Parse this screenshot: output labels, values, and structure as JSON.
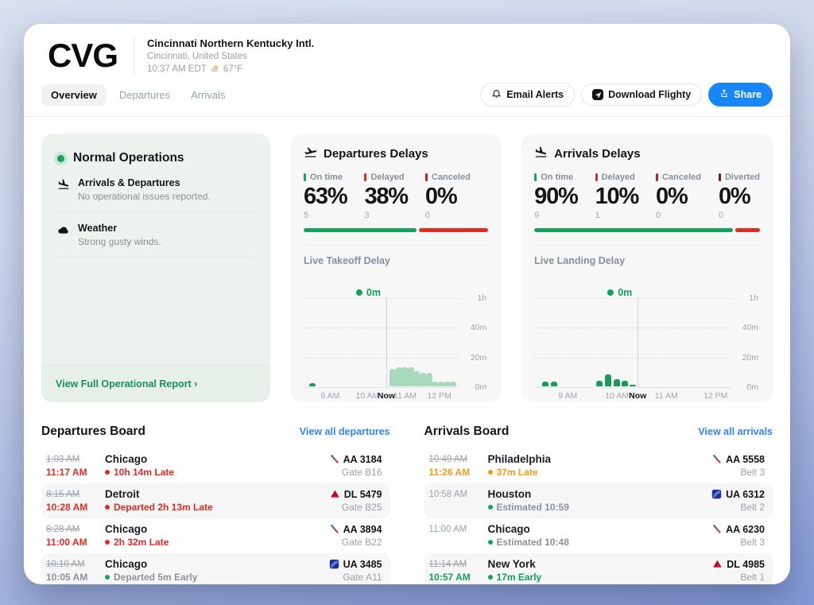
{
  "theme": {
    "green": "#17a35c",
    "light_bar_green": "#a9d9bd",
    "red": "#e02d23",
    "canceled_red": "#b3271e",
    "diverted_maroon": "#6e1a14",
    "orange": "#f59b1f",
    "link_blue": "#2e86f7",
    "share_blue": "#1886f6",
    "mint_bg": "#ecf3ee",
    "card_gray": "#f7f7f8"
  },
  "header": {
    "code": "CVG",
    "name": "Cincinnati Northern Kentucky Intl.",
    "location": "Cincinnati, United States",
    "time": "10:37 AM EDT",
    "temp": "67°F"
  },
  "tabs": [
    {
      "label": "Overview",
      "active": true
    },
    {
      "label": "Departures",
      "active": false
    },
    {
      "label": "Arrivals",
      "active": false
    }
  ],
  "actions": {
    "email": "Email Alerts",
    "download": "Download Flighty",
    "share": "Share"
  },
  "status_card": {
    "title": "Normal Operations",
    "sections": [
      {
        "icon": "plane-landing-icon",
        "title": "Arrivals & Departures",
        "desc": "No operational issues reported."
      },
      {
        "icon": "cloud-icon",
        "title": "Weather",
        "desc": "Strong gusty winds."
      }
    ],
    "footer_link": "View Full Operational Report",
    "chevron": "›"
  },
  "departures_delays": {
    "title": "Departures Delays",
    "stats": [
      {
        "label": "On time",
        "value": "63%",
        "count": "5",
        "color": "#17a35c"
      },
      {
        "label": "Delayed",
        "value": "38%",
        "count": "3",
        "color": "#e02d23"
      },
      {
        "label": "Canceled",
        "value": "0%",
        "count": "0",
        "color": "#b3271e"
      }
    ],
    "segments": [
      {
        "pct": 62,
        "color": "#17a35c"
      },
      {
        "pct": 38,
        "color": "#e02d23"
      }
    ],
    "chart_label": "Live Takeoff Delay"
  },
  "arrivals_delays": {
    "title": "Arrivals Delays",
    "stats": [
      {
        "label": "On time",
        "value": "90%",
        "count": "9",
        "color": "#17a35c"
      },
      {
        "label": "Delayed",
        "value": "10%",
        "count": "1",
        "color": "#e02d23"
      },
      {
        "label": "Canceled",
        "value": "0%",
        "count": "0",
        "color": "#b3271e"
      },
      {
        "label": "Diverted",
        "value": "0%",
        "count": "0",
        "color": "#6e1a14"
      }
    ],
    "segments": [
      {
        "pct": 89,
        "color": "#17a35c"
      },
      {
        "pct": 11,
        "color": "#e02d23"
      }
    ],
    "chart_label": "Live Landing Delay"
  },
  "chart_data": [
    {
      "type": "bar",
      "title": "Live Takeoff Delay",
      "y_unit": "minutes",
      "ylim": [
        0,
        60
      ],
      "ylabels": [
        "1h",
        "40m",
        "20m",
        "0m"
      ],
      "xlabels": [
        {
          "label": "9 AM",
          "pos": 17
        },
        {
          "label": "10 AM",
          "pos": 41
        },
        {
          "label": "Now",
          "pos": 53,
          "bold": true
        },
        {
          "label": "11 AM",
          "pos": 65
        },
        {
          "label": "12 PM",
          "pos": 87
        }
      ],
      "now_pos": 53,
      "now_badge": "0m",
      "bars": [
        {
          "pos": 3.5,
          "minutes": 2,
          "shade": "dark"
        },
        {
          "pos": 55.0,
          "minutes": 12,
          "shade": "light"
        },
        {
          "pos": 58.9,
          "minutes": 13,
          "shade": "light"
        },
        {
          "pos": 62.8,
          "minutes": 13,
          "shade": "light"
        },
        {
          "pos": 66.7,
          "minutes": 13,
          "shade": "light"
        },
        {
          "pos": 70.6,
          "minutes": 10,
          "shade": "light"
        },
        {
          "pos": 74.5,
          "minutes": 9,
          "shade": "light"
        },
        {
          "pos": 78.4,
          "minutes": 9,
          "shade": "light"
        },
        {
          "pos": 82.3,
          "minutes": 3,
          "shade": "light"
        },
        {
          "pos": 86.2,
          "minutes": 3,
          "shade": "light"
        },
        {
          "pos": 90.1,
          "minutes": 3,
          "shade": "light"
        },
        {
          "pos": 94.0,
          "minutes": 3,
          "shade": "light"
        }
      ]
    },
    {
      "type": "bar",
      "title": "Live Landing Delay",
      "y_unit": "minutes",
      "ylim": [
        0,
        60
      ],
      "ylabels": [
        "1h",
        "40m",
        "20m",
        "0m"
      ],
      "xlabels": [
        {
          "label": "9 AM",
          "pos": 17
        },
        {
          "label": "10 AM",
          "pos": 42
        },
        {
          "label": "Now",
          "pos": 52.5,
          "bold": true
        },
        {
          "label": "11 AM",
          "pos": 67
        },
        {
          "label": "12 PM",
          "pos": 92
        }
      ],
      "now_pos": 52.5,
      "now_badge": "0m",
      "bars": [
        {
          "pos": 4.0,
          "minutes": 3,
          "shade": "dark"
        },
        {
          "pos": 8.5,
          "minutes": 3,
          "shade": "dark"
        },
        {
          "pos": 31.5,
          "minutes": 4,
          "shade": "dark"
        },
        {
          "pos": 35.8,
          "minutes": 8,
          "shade": "dark"
        },
        {
          "pos": 40.1,
          "minutes": 5,
          "shade": "dark"
        },
        {
          "pos": 44.4,
          "minutes": 4,
          "shade": "dark"
        },
        {
          "pos": 48.2,
          "minutes": 1,
          "shade": "dark"
        }
      ]
    }
  ],
  "departures_board": {
    "title": "Departures Board",
    "link": "View all departures",
    "rows": [
      {
        "sched": "1:03 AM",
        "sched_struck": true,
        "actual": "11:17 AM",
        "actual_tone": "red",
        "city": "Chicago",
        "dot": "red",
        "status": "10h 14m Late",
        "status_tone": "red",
        "airline": "AA",
        "flight": "AA 3184",
        "slot": "Gate B16"
      },
      {
        "sched": "8:15 AM",
        "sched_struck": true,
        "actual": "10:28 AM",
        "actual_tone": "red",
        "city": "Detroit",
        "dot": "red",
        "status": "Departed 2h 13m Late",
        "status_tone": "red",
        "airline": "DL",
        "flight": "DL 5479",
        "slot": "Gate B25"
      },
      {
        "sched": "8:28 AM",
        "sched_struck": true,
        "actual": "11:00 AM",
        "actual_tone": "red",
        "city": "Chicago",
        "dot": "red",
        "status": "2h 32m Late",
        "status_tone": "red",
        "airline": "AA",
        "flight": "AA 3894",
        "slot": "Gate B22"
      },
      {
        "sched": "10:10 AM",
        "sched_struck": true,
        "actual": "10:05 AM",
        "actual_tone": "gray",
        "city": "Chicago",
        "dot": "green",
        "status": "Departed 5m Early",
        "status_tone": "gray",
        "airline": "UA",
        "flight": "UA 3485",
        "slot": "Gate A11"
      }
    ]
  },
  "arrivals_board": {
    "title": "Arrivals Board",
    "link": "View all arrivals",
    "rows": [
      {
        "sched": "10:49 AM",
        "sched_struck": true,
        "actual": "11:26 AM",
        "actual_tone": "orange",
        "city": "Philadelphia",
        "dot": "orange",
        "status": "37m Late",
        "status_tone": "orange",
        "airline": "AA",
        "flight": "AA 5558",
        "slot": "Belt 3"
      },
      {
        "sched": "10:58 AM",
        "sched_struck": false,
        "actual": "",
        "actual_tone": "gray",
        "city": "Houston",
        "dot": "green",
        "status": "Estimated 10:59",
        "status_tone": "gray",
        "airline": "UA",
        "flight": "UA 6312",
        "slot": "Belt 2"
      },
      {
        "sched": "11:00 AM",
        "sched_struck": false,
        "actual": "",
        "actual_tone": "gray",
        "city": "Chicago",
        "dot": "green",
        "status": "Estimated 10:48",
        "status_tone": "gray",
        "airline": "AA",
        "flight": "AA 6230",
        "slot": "Belt 3"
      },
      {
        "sched": "11:14 AM",
        "sched_struck": true,
        "actual": "10:57 AM",
        "actual_tone": "green",
        "city": "New York",
        "dot": "green",
        "status": "17m Early",
        "status_tone": "green",
        "airline": "DL",
        "flight": "DL 4985",
        "slot": "Belt 1"
      }
    ]
  }
}
